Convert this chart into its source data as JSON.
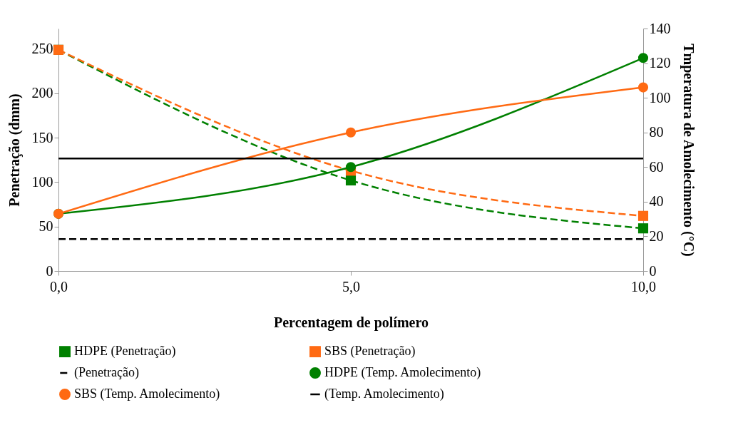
{
  "chart_data": {
    "type": "line",
    "xlabel": "Percentagem de polímero",
    "ylabel": "Penetração (dmm)",
    "y2label": "Tmperatura de Amolecimento (°C)",
    "x": [
      0,
      5,
      10
    ],
    "xlim": [
      0,
      10
    ],
    "xticks": [
      {
        "value": 0,
        "label": "0,0"
      },
      {
        "value": 5,
        "label": "5,0"
      },
      {
        "value": 10,
        "label": "10,0"
      }
    ],
    "ylim": [
      0,
      273
    ],
    "yticks": [
      0,
      50,
      100,
      150,
      200,
      250
    ],
    "y2lim": [
      0,
      140
    ],
    "y2ticks": [
      0,
      20,
      40,
      60,
      80,
      100,
      120,
      140
    ],
    "grid": false,
    "legend": "bottom",
    "series": [
      {
        "name": "HDPE (Penetração)",
        "color": "#008000",
        "values": [
          249,
          102,
          48
        ],
        "marker": "square",
        "line_style": "dashed",
        "axis": "y"
      },
      {
        "name": "SBS (Penetração)",
        "color": "#ff6a13",
        "values": [
          249,
          113,
          62
        ],
        "marker": "square",
        "line_style": "dashed",
        "axis": "y"
      },
      {
        "name": "HDPE (Temp. Amolecimento)",
        "color": "#008000",
        "values": [
          33,
          60,
          123
        ],
        "marker": "circle",
        "line_style": "solid",
        "axis": "y2"
      },
      {
        "name": "SBS (Temp. Amolecimento)",
        "color": "#ff6a13",
        "values": [
          33,
          80,
          106
        ],
        "marker": "circle",
        "line_style": "solid",
        "axis": "y2"
      }
    ],
    "ref_lines": [
      {
        "axis": "y",
        "value": 36,
        "label": "(Penetração)",
        "color": "#000000",
        "line_style": "dashed"
      },
      {
        "axis": "y2",
        "value": 65,
        "label": "(Temp. Amolecimento)",
        "color": "#000000",
        "line_style": "solid"
      }
    ]
  }
}
